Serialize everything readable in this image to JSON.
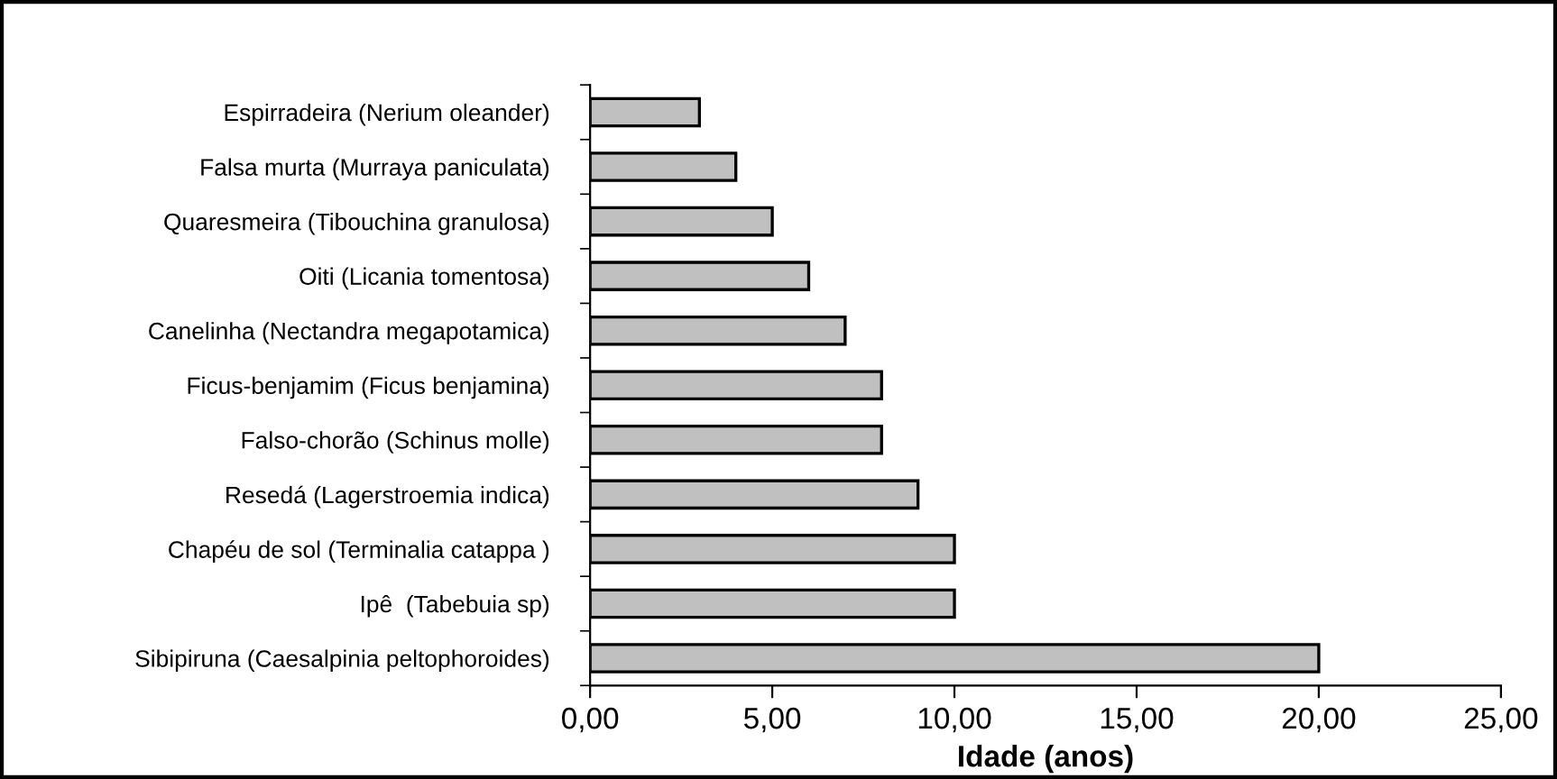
{
  "chart_data": {
    "type": "bar",
    "orientation": "horizontal",
    "xlabel": "Idade (anos)",
    "categories": [
      "Espirradeira (Nerium oleander)",
      "Falsa murta (Murraya paniculata)",
      "Quaresmeira (Tibouchina granulosa)",
      "Oiti (Licania tomentosa)",
      "Canelinha (Nectandra megapotamica)",
      "Ficus-benjamim (Ficus benjamina)",
      "Falso-chorão (Schinus molle)",
      "Resedá (Lagerstroemia indica)",
      "Chapéu de sol (Terminalia catappa )",
      "Ipê  (Tabebuia sp)",
      "Sibipiruna (Caesalpinia peltophoroides)"
    ],
    "values": [
      3,
      4,
      5,
      6,
      7,
      8,
      8,
      9,
      10,
      10,
      20
    ],
    "color": "#c0c0c0",
    "xlim": [
      0,
      25
    ],
    "xticks": [
      {
        "value": 0,
        "label": "0,00"
      },
      {
        "value": 5,
        "label": "5,00"
      },
      {
        "value": 10,
        "label": "10,00"
      },
      {
        "value": 15,
        "label": "15,00"
      },
      {
        "value": 20,
        "label": "20,00"
      },
      {
        "value": 25,
        "label": "25,00"
      }
    ],
    "grid": false
  }
}
